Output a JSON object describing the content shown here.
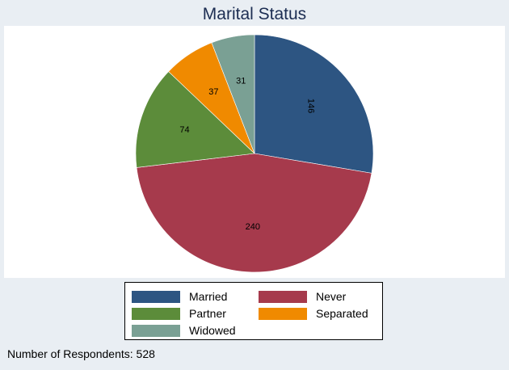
{
  "chart_data": {
    "type": "pie",
    "title": "Marital Status",
    "slices": [
      {
        "label": "Married",
        "value": 146,
        "color": "#2d5582"
      },
      {
        "label": "Never",
        "value": 240,
        "color": "#a63a4c"
      },
      {
        "label": "Partner",
        "value": 74,
        "color": "#5c8c3a"
      },
      {
        "label": "Separated",
        "value": 37,
        "color": "#f08a00"
      },
      {
        "label": "Widowed",
        "value": 31,
        "color": "#7aa094"
      }
    ],
    "legend": {
      "placement": "bottom",
      "entries": [
        "Married",
        "Never",
        "Partner",
        "Separated",
        "Widowed"
      ]
    },
    "note": "Number of Respondents: 528"
  },
  "colors": {
    "page_background": "#e9eef3",
    "plot_background": "#ffffff",
    "title_color": "#1c2d52"
  }
}
